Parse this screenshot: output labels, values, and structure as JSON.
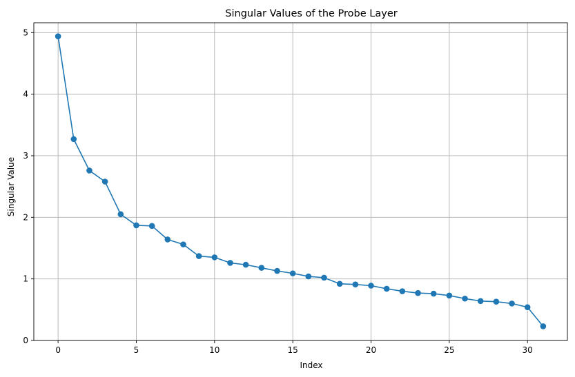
{
  "chart_data": {
    "type": "line",
    "title": "Singular Values of the Probe Layer",
    "xlabel": "Index",
    "ylabel": "Singular Value",
    "xlim": [
      -1.55,
      32.55
    ],
    "ylim": [
      0,
      5.16
    ],
    "xticks": [
      0,
      5,
      10,
      15,
      20,
      25,
      30
    ],
    "yticks": [
      0,
      1,
      2,
      3,
      4,
      5
    ],
    "grid": true,
    "marker": "circle",
    "color": "#1f77b4",
    "x": [
      0,
      1,
      2,
      3,
      4,
      5,
      6,
      7,
      8,
      9,
      10,
      11,
      12,
      13,
      14,
      15,
      16,
      17,
      18,
      19,
      20,
      21,
      22,
      23,
      24,
      25,
      26,
      27,
      28,
      29,
      30,
      31
    ],
    "values": [
      4.94,
      3.27,
      2.76,
      2.58,
      2.05,
      1.87,
      1.86,
      1.64,
      1.56,
      1.37,
      1.35,
      1.26,
      1.23,
      1.18,
      1.13,
      1.09,
      1.04,
      1.02,
      0.92,
      0.91,
      0.89,
      0.84,
      0.8,
      0.77,
      0.76,
      0.73,
      0.68,
      0.64,
      0.63,
      0.6,
      0.54,
      0.23
    ]
  }
}
